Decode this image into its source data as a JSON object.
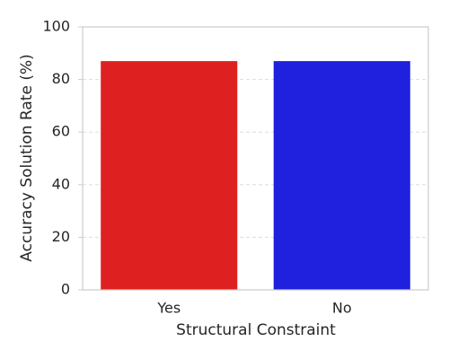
{
  "chart_data": {
    "type": "bar",
    "x_label": "Structural Constraint",
    "y_label": "Accuracy Solution Rate (%)",
    "categories": [
      "Yes",
      "No"
    ],
    "values": [
      87,
      87
    ],
    "colors": [
      "#df2020",
      "#2020df"
    ],
    "ylim": [
      0,
      100
    ],
    "yticks": [
      0,
      20,
      40,
      60,
      80,
      100
    ],
    "grid": true
  }
}
